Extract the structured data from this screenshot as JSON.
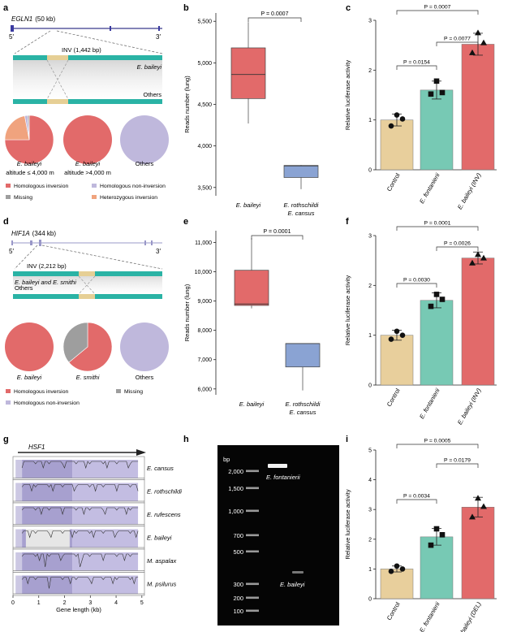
{
  "panel_labels": {
    "a": "a",
    "b": "b",
    "c": "c",
    "d": "d",
    "e": "e",
    "f": "f",
    "g": "g",
    "h": "h",
    "i": "i"
  },
  "colors": {
    "teal": "#2ab3a5",
    "inv": "#e6cf95",
    "red": "#e26a6a",
    "lavender": "#bfb8dc",
    "gray": "#9e9e9e",
    "orange": "#f0a37e",
    "tan": "#e8cf9c",
    "mint": "#77c9b4",
    "blue": "#8aa3d3"
  },
  "panel_a": {
    "gene": "EGLN1",
    "size": "(50 kb)",
    "end5": "5′",
    "end3": "3′",
    "inv": "INV (1,442 bp)",
    "species_top": "E. baileyi",
    "others": "Others",
    "pies": [
      {
        "label": "E. baileyi",
        "sub": "altitude ≤ 4,000 m",
        "slices": [
          {
            "key": "hom_inv",
            "value": 75
          },
          {
            "key": "het_inv",
            "value": 22
          },
          {
            "key": "hom_noninv",
            "value": 2
          },
          {
            "key": "missing",
            "value": 1
          }
        ]
      },
      {
        "label": "E. baileyi",
        "sub": "altitude >4,000 m",
        "slices": [
          {
            "key": "hom_inv",
            "value": 100
          }
        ]
      },
      {
        "label": "Others",
        "sub": "",
        "slices": [
          {
            "key": "hom_noninv",
            "value": 100
          }
        ]
      }
    ],
    "legend": [
      "Homologous inversion",
      "Homologous non-inversion",
      "Missing",
      "Heterozygous inversion"
    ]
  },
  "panel_d": {
    "gene": "HIF1A",
    "size": "(344 kb)",
    "end5": "5′",
    "end3": "3′",
    "inv": "INV (2,212 bp)",
    "species_top": "E. baileyi and E. smithi",
    "others": "Others",
    "pies": [
      {
        "label": "E. baileyi",
        "slices": [
          {
            "key": "hom_inv",
            "value": 100
          }
        ]
      },
      {
        "label": "E. smithi",
        "slices": [
          {
            "key": "hom_inv",
            "value": 64
          },
          {
            "key": "missing",
            "value": 36
          }
        ]
      },
      {
        "label": "Others",
        "slices": [
          {
            "key": "hom_noninv",
            "value": 100
          }
        ]
      }
    ],
    "legend": [
      "Homologous inversion",
      "Missing",
      "Homologous non-inversion"
    ]
  },
  "chart_data": [
    {
      "id": "b",
      "type": "box",
      "ylabel": "Reads number (lung)",
      "ylim": [
        3400,
        5600
      ],
      "yticks": [
        "3,500",
        "4,000",
        "4,500",
        "5,000",
        "5,500"
      ],
      "ytick_values": [
        3500,
        4000,
        4500,
        5000,
        5500
      ],
      "p": "P = 0.0007",
      "groups": [
        {
          "name": "E. baileyi",
          "name2": "",
          "min": 4270,
          "q1": 4570,
          "median": 4860,
          "q3": 5180,
          "max": 5490
        },
        {
          "name": "E. rothschildi",
          "name2": "E. cansus",
          "min": 3480,
          "q1": 3620,
          "median": 3760,
          "q3": 3765,
          "max": 3770
        }
      ]
    },
    {
      "id": "c",
      "type": "bar",
      "ylabel": "Relative luciferase activity",
      "ylim": [
        0,
        3
      ],
      "yticks": [
        "0",
        "1",
        "2",
        "3"
      ],
      "categories": [
        "Control",
        "E. fontanierii",
        "E. baileyi (INV)"
      ],
      "values": [
        1.0,
        1.6,
        2.52
      ],
      "errors": [
        0.12,
        0.18,
        0.22
      ],
      "points": [
        [
          0.88,
          1.02,
          1.1
        ],
        [
          1.52,
          1.55,
          1.78
        ],
        [
          2.35,
          2.55,
          2.75
        ]
      ],
      "p_values": [
        "P = 0.0154",
        "P = 0.0077",
        "P = 0.0007"
      ]
    },
    {
      "id": "e",
      "type": "box",
      "ylabel": "Reads number (lung)",
      "ylim": [
        5800,
        11400
      ],
      "yticks": [
        "6,000",
        "7,000",
        "8,000",
        "9,000",
        "10,000",
        "11,000"
      ],
      "ytick_values": [
        6000,
        7000,
        8000,
        9000,
        10000,
        11000
      ],
      "p": "P = 0.0001",
      "groups": [
        {
          "name": "E. baileyi",
          "name2": "",
          "min": 8750,
          "q1": 8850,
          "median": 8900,
          "q3": 10050,
          "max": 11150
        },
        {
          "name": "E. rothschildi",
          "name2": "E. cansus",
          "min": 5950,
          "q1": 6750,
          "median": 7550,
          "q3": 7550,
          "max": 7550
        }
      ]
    },
    {
      "id": "f",
      "type": "bar",
      "ylabel": "Relative luciferase activity",
      "ylim": [
        0,
        3
      ],
      "yticks": [
        "0",
        "1",
        "2",
        "3"
      ],
      "categories": [
        "Control",
        "E. fontanierii",
        "E. baileyi (INV)"
      ],
      "values": [
        1.0,
        1.7,
        2.55
      ],
      "errors": [
        0.1,
        0.15,
        0.12
      ],
      "points": [
        [
          0.92,
          1.0,
          1.08
        ],
        [
          1.58,
          1.72,
          1.82
        ],
        [
          2.45,
          2.55,
          2.62
        ]
      ],
      "p_values": [
        "P = 0.0030",
        "P = 0.0026",
        "P = 0.0001"
      ]
    },
    {
      "id": "i",
      "type": "bar",
      "ylabel": "Relative luciferase activity",
      "ylim": [
        0,
        5
      ],
      "yticks": [
        "0",
        "1",
        "2",
        "3",
        "4",
        "5"
      ],
      "categories": [
        "Control",
        "E. fontanierii",
        "E. baileyi (DEL)"
      ],
      "values": [
        1.0,
        2.08,
        3.08
      ],
      "errors": [
        0.1,
        0.28,
        0.33
      ],
      "points": [
        [
          0.92,
          1.0,
          1.1
        ],
        [
          1.8,
          2.15,
          2.35
        ],
        [
          2.75,
          3.1,
          3.38
        ]
      ],
      "p_values": [
        "P = 0.0034",
        "P = 0.0179",
        "P = 0.0005"
      ]
    },
    {
      "id": "g",
      "type": "area",
      "gene": "HSF1",
      "xlabel": "Gene length (kb)",
      "xticks": [
        "0",
        "1",
        "2",
        "3",
        "4",
        "5"
      ],
      "tracks": [
        "E. cansus",
        "E. rothschildi",
        "E. rufescens",
        "E. baileyi",
        "M. aspalax",
        "M. psilurus"
      ]
    }
  ],
  "panel_h": {
    "bp": "bp",
    "ladder": [
      "2,000",
      "1,500",
      "1,000",
      "700",
      "500",
      "300",
      "200",
      "100"
    ],
    "band1": "E. fontanierii",
    "band2": "E. baileyi"
  }
}
